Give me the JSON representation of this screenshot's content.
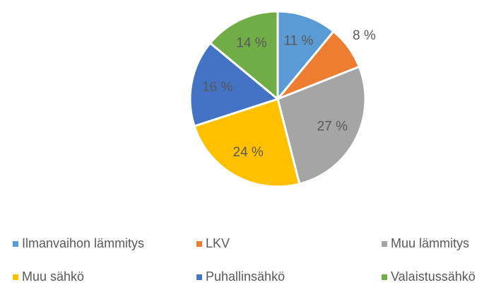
{
  "chart_data": {
    "type": "pie",
    "categories": [
      "Ilmanvaihon lämmitys",
      "LKV",
      "Muu lämmitys",
      "Muu sähkö",
      "Puhallinsähkö",
      "Valaistussähkö"
    ],
    "values": [
      11,
      8,
      27,
      24,
      16,
      14
    ],
    "value_labels": [
      "11 %",
      "8 %",
      "27 %",
      "24 %",
      "16 %",
      "14 %"
    ],
    "colors": [
      "#5b9bd5",
      "#ed7d31",
      "#a5a5a5",
      "#ffc000",
      "#4472c4",
      "#70ad47"
    ],
    "legend": "bottom"
  }
}
